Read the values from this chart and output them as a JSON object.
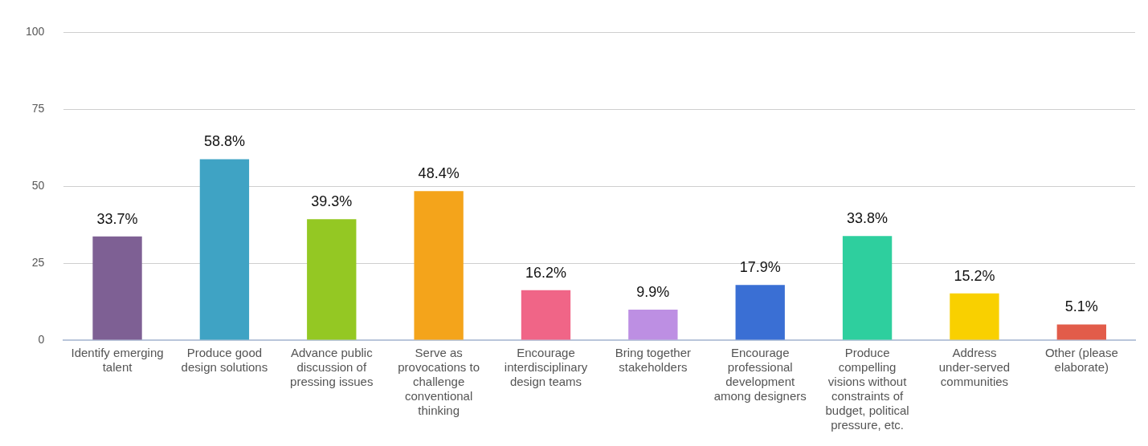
{
  "chart_data": {
    "type": "bar",
    "categories": [
      "Identify emerging talent",
      "Produce good design solutions",
      "Advance public discussion of pressing issues",
      "Serve as provocations to challenge conventional thinking",
      "Encourage interdisciplinary design teams",
      "Bring together stakeholders",
      "Encourage professional development among designers",
      "Produce compelling visions without constraints of budget, political pressure, etc.",
      "Address under-served communities",
      "Other (please elaborate)"
    ],
    "values": [
      33.7,
      58.8,
      39.3,
      48.4,
      16.2,
      9.9,
      17.9,
      33.8,
      15.2,
      5.1
    ],
    "colors": [
      "#7e6094",
      "#3fa3c4",
      "#94c823",
      "#f4a41b",
      "#f06587",
      "#bd8fe3",
      "#3a6fd4",
      "#2ecf9e",
      "#f9d000",
      "#e25c4a"
    ],
    "value_labels": [
      "33.7%",
      "58.8%",
      "39.3%",
      "48.4%",
      "16.2%",
      "9.9%",
      "17.9%",
      "33.8%",
      "15.2%",
      "5.1%"
    ],
    "ylim": [
      0,
      100
    ],
    "yticks": [
      0,
      25,
      50,
      75,
      100
    ],
    "grid": "y",
    "legend": false
  }
}
